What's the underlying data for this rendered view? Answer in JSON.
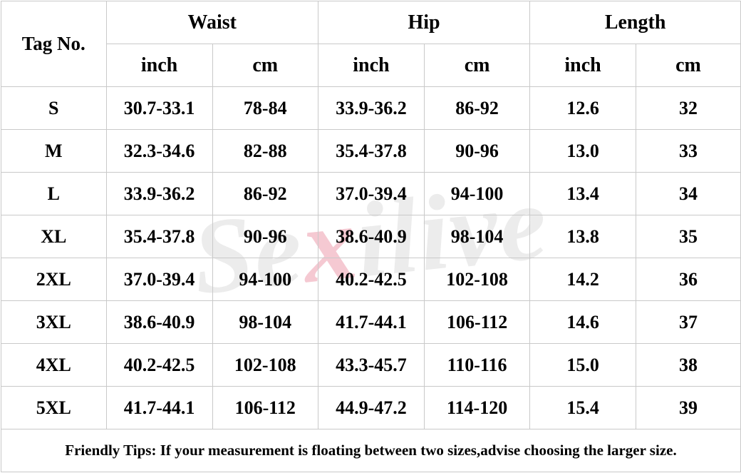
{
  "watermark": {
    "text_a": "Se",
    "text_b": "x",
    "text_c": "ilive",
    "accent": "#f5c9d2"
  },
  "header": {
    "tag_label": "Tag No.",
    "groups": [
      "Waist",
      "Hip",
      "Length"
    ],
    "units": [
      "inch",
      "cm",
      "inch",
      "cm",
      "inch",
      "cm"
    ]
  },
  "rows": [
    {
      "size": "S",
      "waist_in": "30.7-33.1",
      "waist_cm": "78-84",
      "hip_in": "33.9-36.2",
      "hip_cm": "86-92",
      "len_in": "12.6",
      "len_cm": "32"
    },
    {
      "size": "M",
      "waist_in": "32.3-34.6",
      "waist_cm": "82-88",
      "hip_in": "35.4-37.8",
      "hip_cm": "90-96",
      "len_in": "13.0",
      "len_cm": "33"
    },
    {
      "size": "L",
      "waist_in": "33.9-36.2",
      "waist_cm": "86-92",
      "hip_in": "37.0-39.4",
      "hip_cm": "94-100",
      "len_in": "13.4",
      "len_cm": "34"
    },
    {
      "size": "XL",
      "waist_in": "35.4-37.8",
      "waist_cm": "90-96",
      "hip_in": "38.6-40.9",
      "hip_cm": "98-104",
      "len_in": "13.8",
      "len_cm": "35"
    },
    {
      "size": "2XL",
      "waist_in": "37.0-39.4",
      "waist_cm": "94-100",
      "hip_in": "40.2-42.5",
      "hip_cm": "102-108",
      "len_in": "14.2",
      "len_cm": "36"
    },
    {
      "size": "3XL",
      "waist_in": "38.6-40.9",
      "waist_cm": "98-104",
      "hip_in": "41.7-44.1",
      "hip_cm": "106-112",
      "len_in": "14.6",
      "len_cm": "37"
    },
    {
      "size": "4XL",
      "waist_in": "40.2-42.5",
      "waist_cm": "102-108",
      "hip_in": "43.3-45.7",
      "hip_cm": "110-116",
      "len_in": "15.0",
      "len_cm": "38"
    },
    {
      "size": "5XL",
      "waist_in": "41.7-44.1",
      "waist_cm": "106-112",
      "hip_in": "44.9-47.2",
      "hip_cm": "114-120",
      "len_in": "15.4",
      "len_cm": "39"
    }
  ],
  "tips": "Friendly Tips: If your measurement is floating between two sizes,advise choosing the larger size.",
  "colors": {
    "tips_text": "#ff0000",
    "grid_border": "#c9c9c9"
  }
}
